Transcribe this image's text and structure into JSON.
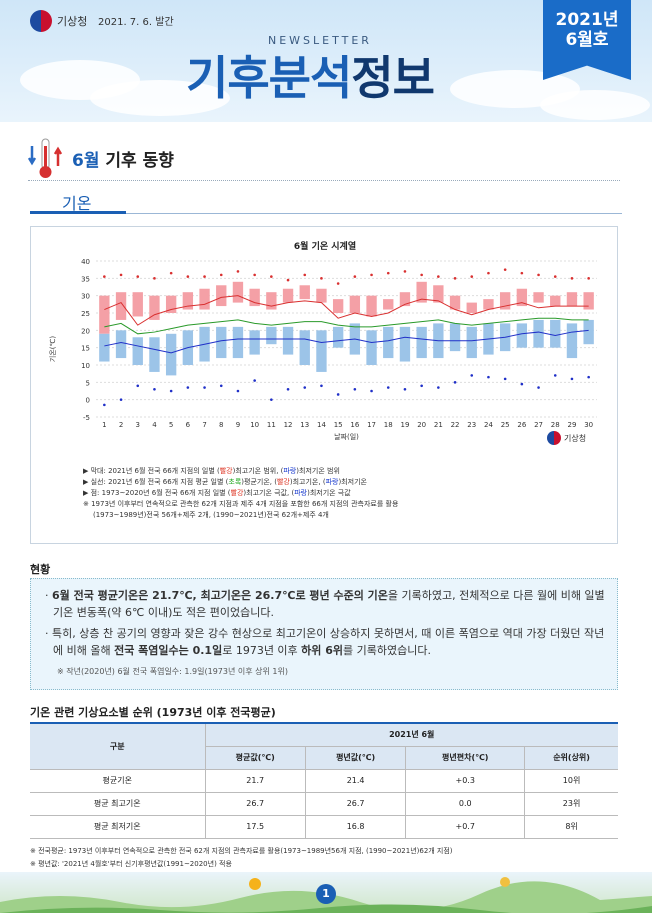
{
  "header": {
    "agency": "기상청",
    "issue_date": "2021. 7. 6. 발간",
    "newsletter": "NEWSLETTER",
    "title_a": "기후분석",
    "title_b": "정보",
    "ribbon_year": "2021년",
    "ribbon_month": "6월호"
  },
  "section": {
    "month": "6월",
    "title": "기후 동향",
    "tab": "기온"
  },
  "chart_data": {
    "type": "line",
    "title": "6월 기온 시계열",
    "xlabel": "날짜(일)",
    "ylabel": "기온(℃)",
    "ylim": [
      -5,
      40
    ],
    "yticks": [
      -5,
      0,
      5,
      10,
      15,
      20,
      25,
      30,
      35,
      40
    ],
    "x": [
      1,
      2,
      3,
      4,
      5,
      6,
      7,
      8,
      9,
      10,
      11,
      12,
      13,
      14,
      15,
      16,
      17,
      18,
      19,
      20,
      21,
      22,
      23,
      24,
      25,
      26,
      27,
      28,
      29,
      30
    ],
    "xticks": [
      "1",
      "2",
      "3",
      "4",
      "5",
      "6",
      "7",
      "8",
      "9",
      "10",
      "11",
      "12",
      "13",
      "14",
      "15",
      "16",
      "17",
      "18",
      "19",
      "20",
      "21",
      "22",
      "23",
      "24",
      "25",
      "26",
      "27",
      "28",
      "29",
      "30"
    ],
    "tmax_range": {
      "low": [
        19,
        23,
        24,
        23,
        25,
        26,
        26,
        27,
        28,
        27,
        26,
        28,
        29,
        28,
        25,
        25,
        24,
        26,
        27,
        28,
        28,
        26,
        25,
        26,
        26,
        27,
        28,
        27,
        27,
        26
      ],
      "high": [
        30,
        31,
        31,
        30,
        30,
        31,
        32,
        33,
        34,
        32,
        31,
        32,
        33,
        32,
        29,
        30,
        30,
        29,
        31,
        34,
        33,
        30,
        28,
        29,
        31,
        32,
        31,
        30,
        31,
        31
      ]
    },
    "tmin_range": {
      "low": [
        11,
        12,
        10,
        8,
        7,
        10,
        11,
        12,
        12,
        13,
        16,
        13,
        10,
        8,
        15,
        13,
        10,
        12,
        11,
        12,
        12,
        14,
        12,
        13,
        14,
        15,
        15,
        15,
        12,
        16
      ],
      "high": [
        19,
        20,
        18,
        18,
        19,
        20,
        21,
        21,
        21,
        20,
        21,
        21,
        20,
        20,
        21,
        22,
        20,
        21,
        21,
        21,
        22,
        22,
        21,
        22,
        22,
        22,
        23,
        23,
        22,
        23
      ]
    },
    "series": [
      {
        "name": "평균기온",
        "color": "#2a9a2a",
        "values": [
          21.0,
          22.0,
          19.0,
          19.5,
          20.5,
          21.5,
          22.0,
          22.5,
          23.0,
          22.0,
          21.5,
          22.0,
          22.5,
          22.5,
          21.5,
          21.0,
          21.0,
          21.5,
          22.0,
          22.5,
          23.0,
          22.0,
          21.5,
          22.0,
          22.5,
          23.0,
          23.5,
          23.5,
          23.0,
          23.0
        ]
      },
      {
        "name": "최고기온",
        "color": "#d93030",
        "values": [
          26.0,
          28.0,
          21.5,
          24.5,
          26.0,
          27.0,
          27.5,
          29.5,
          30.0,
          28.0,
          27.0,
          28.0,
          28.5,
          28.0,
          23.5,
          25.0,
          24.0,
          25.0,
          27.5,
          29.0,
          28.5,
          26.0,
          24.5,
          26.0,
          27.0,
          28.0,
          26.5,
          27.0,
          27.0,
          27.0
        ]
      },
      {
        "name": "최저기온",
        "color": "#2030c8",
        "values": [
          15.5,
          16.5,
          15.5,
          14.5,
          13.5,
          15.0,
          16.0,
          17.0,
          17.5,
          17.5,
          17.5,
          17.5,
          17.5,
          16.5,
          17.0,
          17.5,
          16.5,
          17.0,
          18.0,
          17.5,
          17.0,
          17.0,
          17.0,
          17.5,
          18.0,
          19.0,
          19.5,
          18.5,
          19.5,
          20.0
        ]
      }
    ],
    "max_extreme": [
      35.5,
      36.0,
      35.5,
      35.0,
      36.5,
      35.5,
      35.5,
      36.0,
      37.0,
      36.0,
      35.5,
      34.5,
      36.0,
      35.0,
      33.5,
      35.5,
      36.0,
      36.5,
      37.0,
      36.0,
      35.5,
      35.0,
      35.5,
      36.5,
      37.5,
      36.5,
      36.0,
      35.5,
      35.0,
      35.0
    ],
    "min_extreme": [
      -1.5,
      0.0,
      4.0,
      3.0,
      2.5,
      3.5,
      3.5,
      4.0,
      2.5,
      5.5,
      0.0,
      3.0,
      3.5,
      4.0,
      1.5,
      3.0,
      2.5,
      3.5,
      3.0,
      4.0,
      3.5,
      5.0,
      7.0,
      6.5,
      6.0,
      4.5,
      3.5,
      7.0,
      6.0,
      6.5
    ]
  },
  "chart_notes": {
    "n1a": "▶ 막대: 2021년 6월 전국 66개 지점의 일별 (",
    "n1b": "빨강",
    "n1c": ")최고기온 범위, (",
    "n1d": "파랑",
    "n1e": ")최저기온 범위",
    "n2a": "▶ 실선: 2021년 6월 전국 66개 지점 평균 일별 (",
    "n2b": "초록",
    "n2c": ")평균기온, (",
    "n2d": "빨강",
    "n2e": ")최고기온, (",
    "n2f": "파랑",
    "n2g": ")최저기온",
    "n3a": "▶ 점: 1973~2020년 6월 전국 66개 지점 일별 (",
    "n3b": "빨강",
    "n3c": ")최고기온 극값, (",
    "n3d": "파랑",
    "n3e": ")최저기온 극값",
    "n4": "※ 1973년 이후부터 연속적으로 관측한 62개 지점과 제주 4개 지점을 포함한 66개 지점의 관측자료를 활용",
    "n5": "(1973~1989년)전국 56개+제주 2개, (1990~2021년)전국 62개+제주 4개",
    "logo": "기상청"
  },
  "status": {
    "heading": "현황",
    "p1a": "6월 전국 평균기온은 21.7℃, 최고기온은 26.7℃로 평년 수준의 기온",
    "p1b": "을 기록하였고, 전체적으로 다른 월에 비해 일별 기온 변동폭(약 6℃ 이내)도 적은 편이었습니다.",
    "p2a": "특히, 상층 찬 공기의 영향과 잦은 강수 현상으로 최고기온이 상승하지 못하면서, 때 이른 폭염으로 역대 가장 더웠던 작년에 비해 올해 ",
    "p2b": "전국 폭염일수는 0.1일",
    "p2c": "로 1973년 이후 ",
    "p2d": "하위 6위",
    "p2e": "를 기록하였습니다.",
    "note": "※ 작년(2020년) 6월 전국 폭염일수: 1.9일(1973년 이후 상위 1위)"
  },
  "table": {
    "heading": "기온 관련 기상요소별 순위 (1973년 이후 전국평균)",
    "col_group": "구분",
    "col_month": "2021년 6월",
    "cols": [
      "평균값(℃)",
      "평년값(℃)",
      "평년편차(℃)",
      "순위(상위)"
    ],
    "rows": [
      {
        "name": "평균기온",
        "v": [
          "21.7",
          "21.4",
          "+0.3",
          "10위"
        ]
      },
      {
        "name": "평균 최고기온",
        "v": [
          "26.7",
          "26.7",
          "0.0",
          "23위"
        ]
      },
      {
        "name": "평균 최저기온",
        "v": [
          "17.5",
          "16.8",
          "+0.7",
          "8위"
        ]
      }
    ]
  },
  "footnotes": {
    "f1": "※ 전국평균: 1973년 이후부터 연속적으로 관측한 전국 62개 지점의 관측자료를 활용(1973~1989년56개 지점, (1990~2021년)62개 지점)",
    "f2": "※ 평년값: '2021년 4월호'부터 신기후평년값(1991~2020년) 적용"
  },
  "page": {
    "number": "1"
  },
  "colors": {
    "accent": "#1a5fb4",
    "max_bar": "#f4a0a6",
    "min_bar": "#9cc4e8",
    "overlap": "#8e7fb0"
  }
}
